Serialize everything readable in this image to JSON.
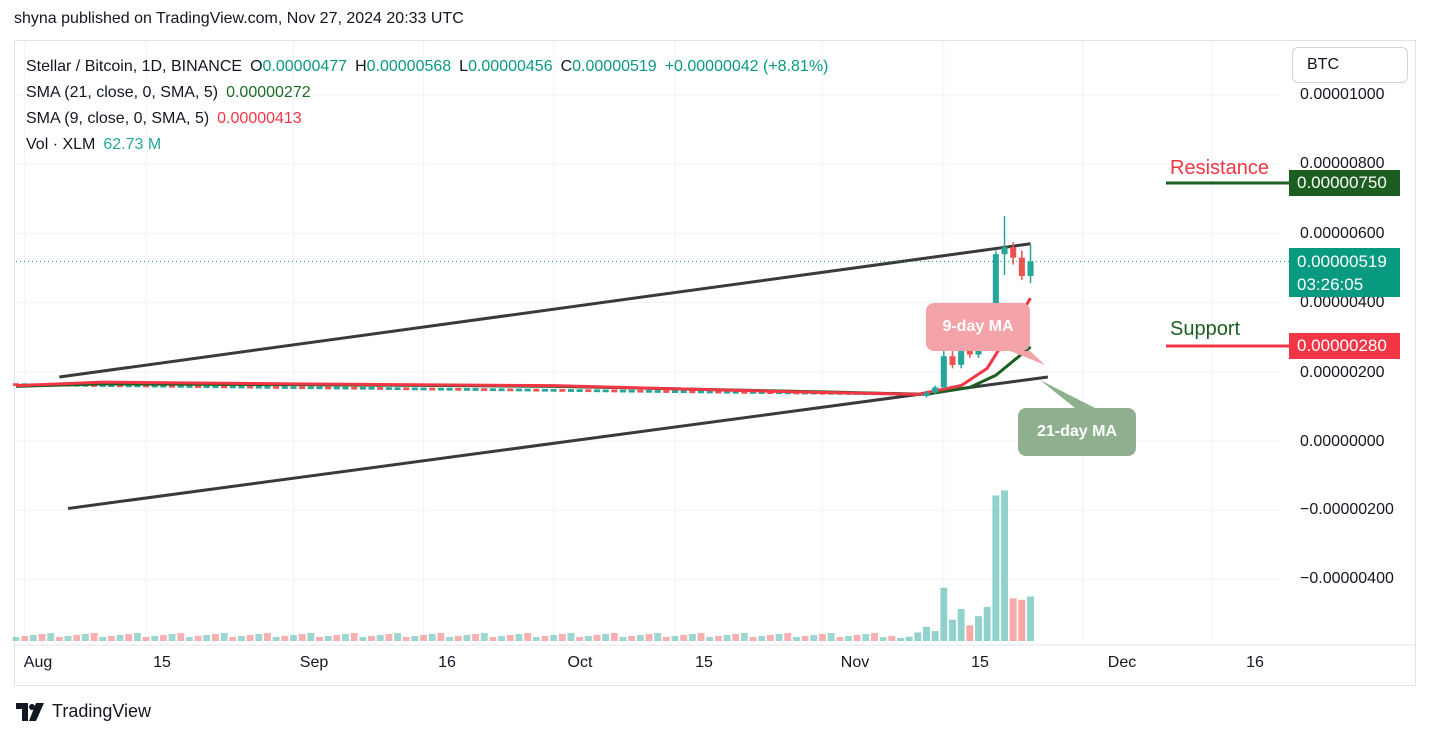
{
  "header": {
    "published_by": "shyna published on TradingView.com, Nov 27, 2024 20:33 UTC"
  },
  "legend": {
    "symbol": "Stellar / Bitcoin, 1D, BINANCE",
    "open_label": "O",
    "open": "0.00000477",
    "high_label": "H",
    "high": "0.00000568",
    "low_label": "L",
    "low": "0.00000456",
    "close_label": "C",
    "close": "0.00000519",
    "change": "+0.00000042 (+8.81%)",
    "sma21_label": "SMA (21, close, 0, SMA, 5)",
    "sma21_value": "0.00000272",
    "sma9_label": "SMA (9, close, 0, SMA, 5)",
    "sma9_value": "0.00000413",
    "vol_label": "Vol · XLM",
    "vol_value": "62.73 M"
  },
  "currency_selector": "BTC",
  "price_axis": {
    "ticks": [
      "0.00001000",
      "0.00000800",
      "0.00000600",
      "0.00000400",
      "0.00000200",
      "0.00000000",
      "−0.00000200",
      "−0.00000400"
    ]
  },
  "price_tags": {
    "resistance_value": "0.00000750",
    "last_price": "0.00000519",
    "countdown": "03:26:05",
    "support_value": "0.00000280"
  },
  "annotations": {
    "resistance": "Resistance",
    "support": "Support",
    "ma9": "9-day MA",
    "ma21": "21-day MA"
  },
  "time_axis": {
    "labels": [
      "Aug",
      "15",
      "Sep",
      "16",
      "Oct",
      "15",
      "Nov",
      "15",
      "Dec",
      "16"
    ]
  },
  "colors": {
    "up": "#26a69a",
    "down": "#ef5350",
    "sma9": "#f23645",
    "sma21": "#1b5e20",
    "channel": "#3a3a3a",
    "resistance": "#1b5e20",
    "support": "#f23645"
  },
  "brand": {
    "name": "TradingView"
  },
  "chart_data": {
    "type": "candlestick",
    "title": "Stellar / Bitcoin, 1D, BINANCE",
    "ylim": [
      -5e-06,
      1.1e-05
    ],
    "yticks": [
      1e-05,
      8e-06,
      6e-06,
      4e-06,
      2e-06,
      0.0,
      -2e-06,
      -4e-06
    ],
    "x_start": "2024-07-31",
    "x_range": [
      "2024-07-31",
      "2024-12-24"
    ],
    "x_ticks": [
      {
        "date": "2024-08-01",
        "label": "Aug"
      },
      {
        "date": "2024-08-15",
        "label": "15"
      },
      {
        "date": "2024-09-01",
        "label": "Sep"
      },
      {
        "date": "2024-09-16",
        "label": "16"
      },
      {
        "date": "2024-10-01",
        "label": "Oct"
      },
      {
        "date": "2024-10-15",
        "label": "15"
      },
      {
        "date": "2024-11-01",
        "label": "Nov"
      },
      {
        "date": "2024-11-15",
        "label": "15"
      },
      {
        "date": "2024-12-01",
        "label": "Dec"
      },
      {
        "date": "2024-12-16",
        "label": "16"
      }
    ],
    "last_price": 5.19e-06,
    "last_candle": {
      "open": 4.77e-06,
      "high": 5.68e-06,
      "low": 4.56e-06,
      "close": 5.19e-06
    },
    "candles": [
      {
        "date": "2024-11-13",
        "open": 1.3e-06,
        "high": 1.45e-06,
        "low": 1.25e-06,
        "close": 1.4e-06
      },
      {
        "date": "2024-11-14",
        "open": 1.4e-06,
        "high": 1.6e-06,
        "low": 1.35e-06,
        "close": 1.55e-06
      },
      {
        "date": "2024-11-15",
        "open": 1.55e-06,
        "high": 2.6e-06,
        "low": 1.5e-06,
        "close": 2.45e-06
      },
      {
        "date": "2024-11-16",
        "open": 2.45e-06,
        "high": 2.6e-06,
        "low": 2.1e-06,
        "close": 2.2e-06
      },
      {
        "date": "2024-11-17",
        "open": 2.2e-06,
        "high": 2.8e-06,
        "low": 2.1e-06,
        "close": 2.6e-06
      },
      {
        "date": "2024-11-18",
        "open": 2.6e-06,
        "high": 2.9e-06,
        "low": 2.4e-06,
        "close": 2.5e-06
      },
      {
        "date": "2024-11-19",
        "open": 2.5e-06,
        "high": 3e-06,
        "low": 2.4e-06,
        "close": 2.7e-06
      },
      {
        "date": "2024-11-20",
        "open": 2.7e-06,
        "high": 3.3e-06,
        "low": 2.6e-06,
        "close": 3.1e-06
      },
      {
        "date": "2024-11-21",
        "open": 3.1e-06,
        "high": 5.5e-06,
        "low": 3e-06,
        "close": 5.4e-06
      },
      {
        "date": "2024-11-22",
        "open": 5.4e-06,
        "high": 6.5e-06,
        "low": 4.8e-06,
        "close": 5.6e-06
      },
      {
        "date": "2024-11-23",
        "open": 5.6e-06,
        "high": 5.75e-06,
        "low": 5.1e-06,
        "close": 5.3e-06
      },
      {
        "date": "2024-11-24",
        "open": 5.3e-06,
        "high": 5.5e-06,
        "low": 4.65e-06,
        "close": 4.77e-06
      },
      {
        "date": "2024-11-25",
        "open": 4.77e-06,
        "high": 5.68e-06,
        "low": 4.56e-06,
        "close": 5.19e-06
      }
    ],
    "sma9": [
      {
        "date": "2024-07-31",
        "value": 1.6e-06
      },
      {
        "date": "2024-08-10",
        "value": 1.7e-06
      },
      {
        "date": "2024-09-01",
        "value": 1.65e-06
      },
      {
        "date": "2024-10-01",
        "value": 1.6e-06
      },
      {
        "date": "2024-11-01",
        "value": 1.4e-06
      },
      {
        "date": "2024-11-12",
        "value": 1.35e-06
      },
      {
        "date": "2024-11-17",
        "value": 1.6e-06
      },
      {
        "date": "2024-11-20",
        "value": 2.1e-06
      },
      {
        "date": "2024-11-23",
        "value": 3.3e-06
      },
      {
        "date": "2024-11-25",
        "value": 4.13e-06
      }
    ],
    "sma21": [
      {
        "date": "2024-07-31",
        "value": 1.58e-06
      },
      {
        "date": "2024-08-10",
        "value": 1.65e-06
      },
      {
        "date": "2024-09-01",
        "value": 1.63e-06
      },
      {
        "date": "2024-10-01",
        "value": 1.58e-06
      },
      {
        "date": "2024-11-01",
        "value": 1.42e-06
      },
      {
        "date": "2024-11-13",
        "value": 1.35e-06
      },
      {
        "date": "2024-11-18",
        "value": 1.55e-06
      },
      {
        "date": "2024-11-21",
        "value": 1.9e-06
      },
      {
        "date": "2024-11-25",
        "value": 2.72e-06
      }
    ],
    "channel_upper": [
      {
        "date": "2024-08-05",
        "value": 1.85e-06
      },
      {
        "date": "2024-11-25",
        "value": 5.7e-06
      }
    ],
    "channel_lower": [
      {
        "date": "2024-08-06",
        "value": -1.95e-06
      },
      {
        "date": "2024-11-27",
        "value": 1.85e-06
      }
    ],
    "resistance_level": 7.5e-06,
    "support_level": 2.8e-06,
    "volume_tail": [
      {
        "date": "2024-11-10",
        "value": 4
      },
      {
        "date": "2024-11-11",
        "value": 6
      },
      {
        "date": "2024-11-12",
        "value": 12
      },
      {
        "date": "2024-11-13",
        "value": 20
      },
      {
        "date": "2024-11-14",
        "value": 14
      },
      {
        "date": "2024-11-15",
        "value": 75
      },
      {
        "date": "2024-11-16",
        "value": 30
      },
      {
        "date": "2024-11-17",
        "value": 45
      },
      {
        "date": "2024-11-18",
        "value": 22
      },
      {
        "date": "2024-11-19",
        "value": 35
      },
      {
        "date": "2024-11-20",
        "value": 48
      },
      {
        "date": "2024-11-21",
        "value": 205
      },
      {
        "date": "2024-11-22",
        "value": 212
      },
      {
        "date": "2024-11-23",
        "value": 60
      },
      {
        "date": "2024-11-24",
        "value": 58
      },
      {
        "date": "2024-11-25",
        "value": 62.73
      }
    ]
  }
}
